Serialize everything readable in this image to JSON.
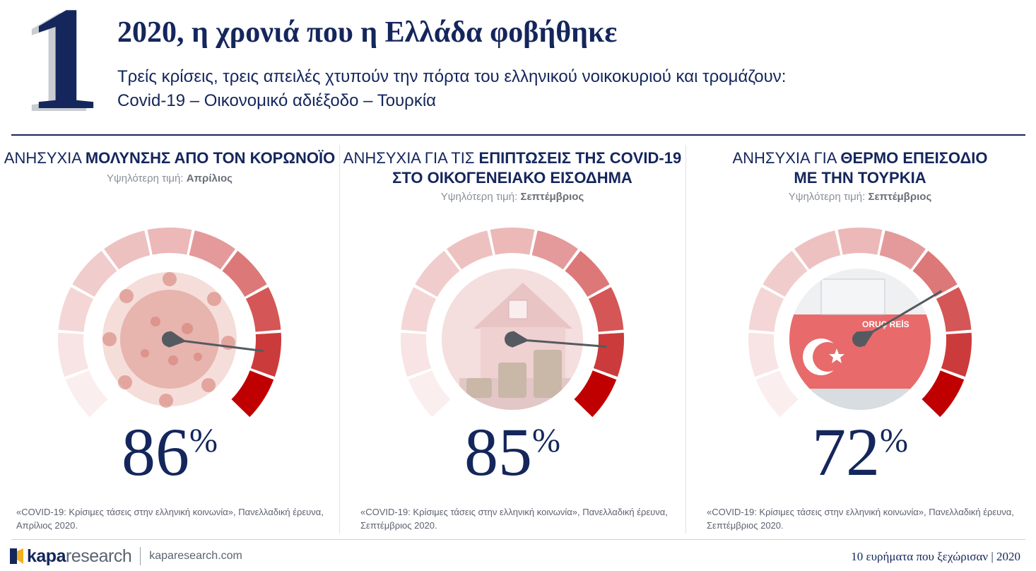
{
  "header": {
    "number": "1",
    "title": "2020, η χρονιά που η Ελλάδα φοβήθηκε",
    "subtitle_line1": "Τρείς κρίσεις, τρεις απειλές χτυπούν την πόρτα του ελληνικού νοικοκυριού και τρομάζουν:",
    "subtitle_line2": "Covid-19 – Οικονομικό αδιέξοδο – Τουρκία"
  },
  "panels": [
    {
      "head_plain": "ΑΝΗΣΥΧΙΑ ",
      "head_bold": "ΜΟΛΥΝΣΗΣ ΑΠΟ ΤΟΝ ΚΟΡΩΝΟΪΟ",
      "head_bold2": "",
      "peak_label": "Υψηλότερη τιμή: ",
      "peak_value": "Απρίλιος",
      "value": 86,
      "percent_sign": "%",
      "image": "coronavirus-image",
      "source_line1": "«COVID-19: Κρίσιμες τάσεις στην ελληνική κοινωνία», Πανελλαδική έρευνα,",
      "source_line2": "Απρίλιος 2020."
    },
    {
      "head_plain": "ΑΝΗΣΥΧΙΑ ΓΙΑ ΤΙΣ ",
      "head_bold": "ΕΠΙΠΤΩΣΕΙΣ ΤΗΣ COVID-19",
      "head_bold2": "ΣΤΟ ΟΙΚΟΓΕΝΕΙΑΚΟ ΕΙΣΟΔΗΜΑ",
      "peak_label": "Υψηλότερη τιμή: ",
      "peak_value": "Σεπτέμβριος",
      "value": 85,
      "percent_sign": "%",
      "image": "house-coins-image",
      "source_line1": "«COVID-19: Κρίσιμες τάσεις στην ελληνική κοινωνία», Πανελλαδική έρευνα,",
      "source_line2": "Σεπτέμβριος 2020."
    },
    {
      "head_plain": "ΑΝΗΣΥΧΙΑ ΓΙΑ ",
      "head_bold": "ΘΕΡΜΟ ΕΠΕΙΣΟΔΙΟ",
      "head_bold2": "ΜΕ ΤΗΝ ΤΟΥΡΚΙΑ",
      "peak_label": "Υψηλότερη τιμή: ",
      "peak_value": "Σεπτέμβριος",
      "value": 72,
      "percent_sign": "%",
      "image": "ship-image",
      "ship_name": "ORUÇ REİS",
      "source_line1": "«COVID-19: Κρίσιμες τάσεις στην ελληνική κοινωνία», Πανελλαδική έρευνα,",
      "source_line2": "Σεπτέμβριος 2020."
    }
  ],
  "gauge_colors": [
    "#fbeeee",
    "#f8e4e4",
    "#f4d6d6",
    "#f1cccc",
    "#eec1c1",
    "#ecb8b8",
    "#e49a9a",
    "#dd7878",
    "#d45656",
    "#cc3b3b",
    "#c00000"
  ],
  "footer": {
    "logo_kapa": "kapa",
    "logo_research": "research",
    "website": "kaparesearch.com",
    "right_text": "10 ευρήματα που ξεχώρισαν | 2020"
  }
}
